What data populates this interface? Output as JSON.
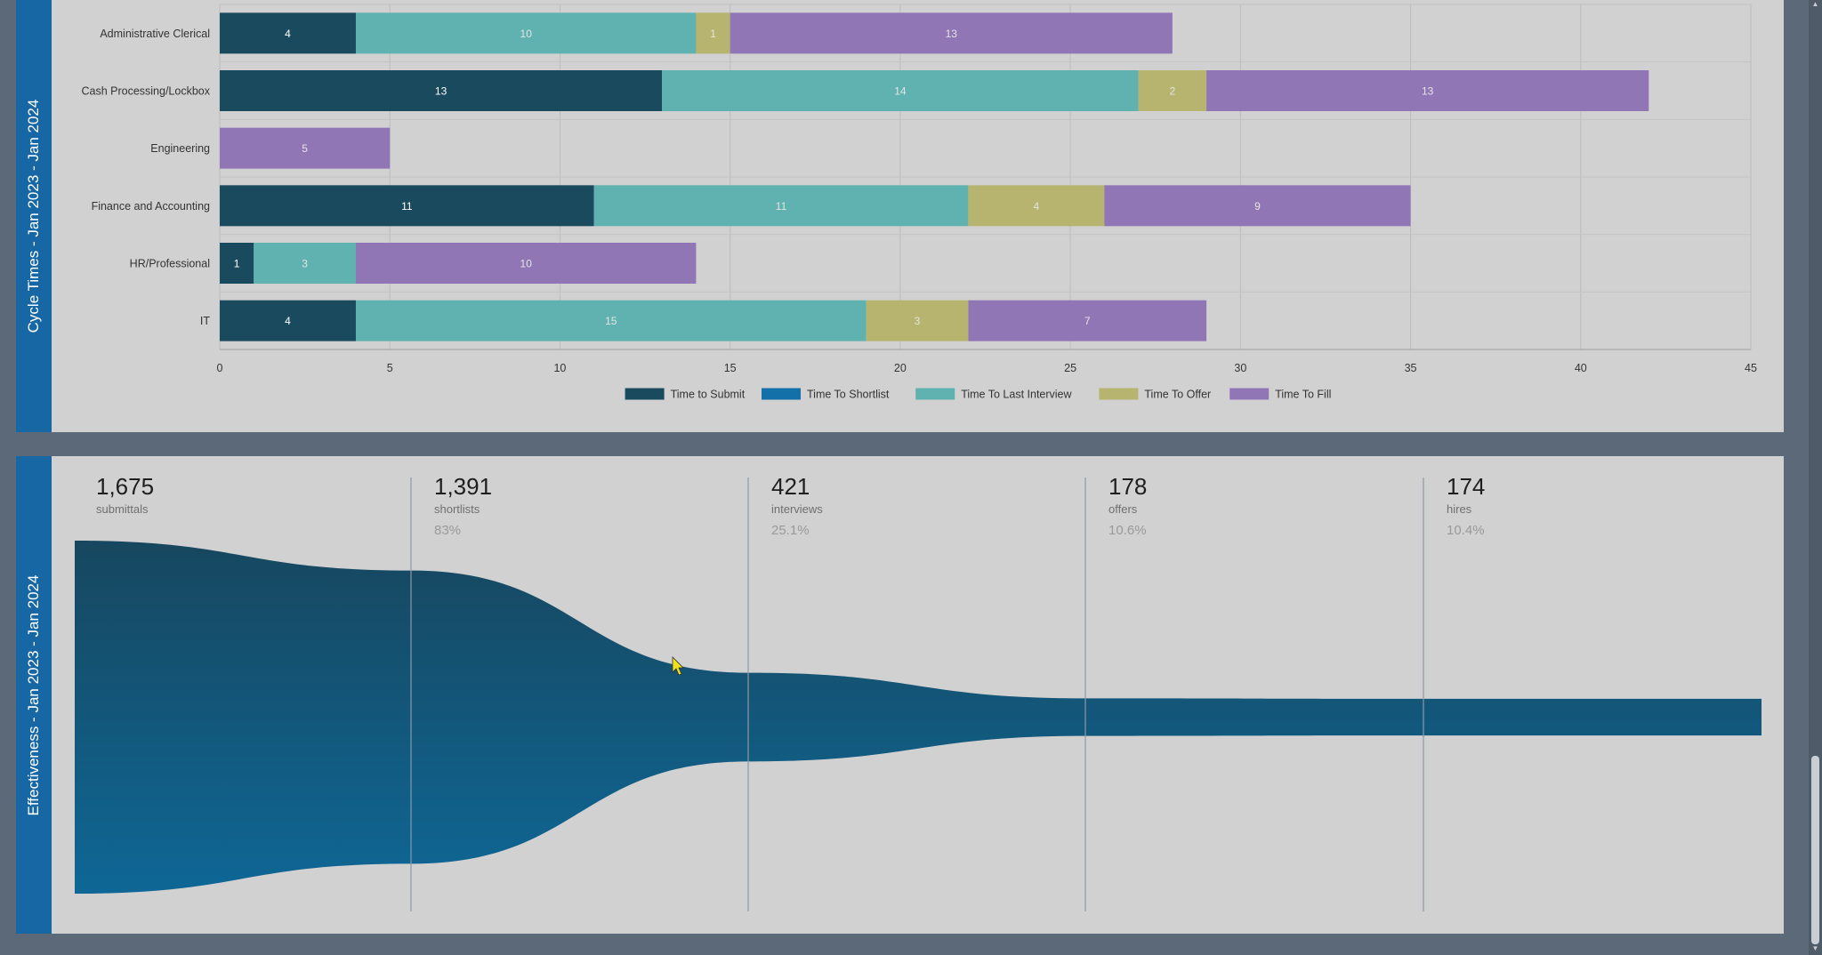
{
  "cycle_panel": {
    "side_title": "Cycle Times - Jan 2023 - Jan 2024"
  },
  "effectiveness_panel": {
    "side_title": "Effectiveness - Jan 2023 - Jan 2024",
    "stages": [
      {
        "value": "1,675",
        "label": "submittals",
        "percent": ""
      },
      {
        "value": "1,391",
        "label": "shortlists",
        "percent": "83%"
      },
      {
        "value": "421",
        "label": "interviews",
        "percent": "25.1%"
      },
      {
        "value": "178",
        "label": "offers",
        "percent": "10.6%"
      },
      {
        "value": "174",
        "label": "hires",
        "percent": "10.4%"
      }
    ],
    "funnel_values": [
      1675,
      1391,
      421,
      178,
      174
    ],
    "funnel_colors": {
      "top": "#17475f",
      "bottom": "#0e6796"
    }
  },
  "chart_data": {
    "type": "bar",
    "orientation": "horizontal",
    "stacked": true,
    "categories": [
      "Administrative Clerical",
      "Cash Processing/Lockbox",
      "Engineering",
      "Finance and Accounting",
      "HR/Professional",
      "IT"
    ],
    "series": [
      {
        "name": "Time to Submit",
        "color": "#1a4a5e",
        "values": [
          4,
          13,
          0,
          11,
          1,
          4
        ]
      },
      {
        "name": "Time To Shortlist",
        "color": "#1470a8",
        "values": [
          0,
          0,
          0,
          0,
          0,
          0
        ]
      },
      {
        "name": "Time To Last Interview",
        "color": "#5fb2b0",
        "values": [
          10,
          14,
          0,
          11,
          3,
          15
        ]
      },
      {
        "name": "Time To Offer",
        "color": "#b6b46f",
        "values": [
          1,
          2,
          0,
          4,
          0,
          3
        ]
      },
      {
        "name": "Time To Fill",
        "color": "#9176b6",
        "values": [
          13,
          13,
          5,
          9,
          10,
          7
        ]
      }
    ],
    "xlim": [
      0,
      45
    ],
    "xticks": [
      0,
      5,
      10,
      15,
      20,
      25,
      30,
      35,
      40,
      45
    ],
    "grid": true,
    "legend": "bottom"
  }
}
